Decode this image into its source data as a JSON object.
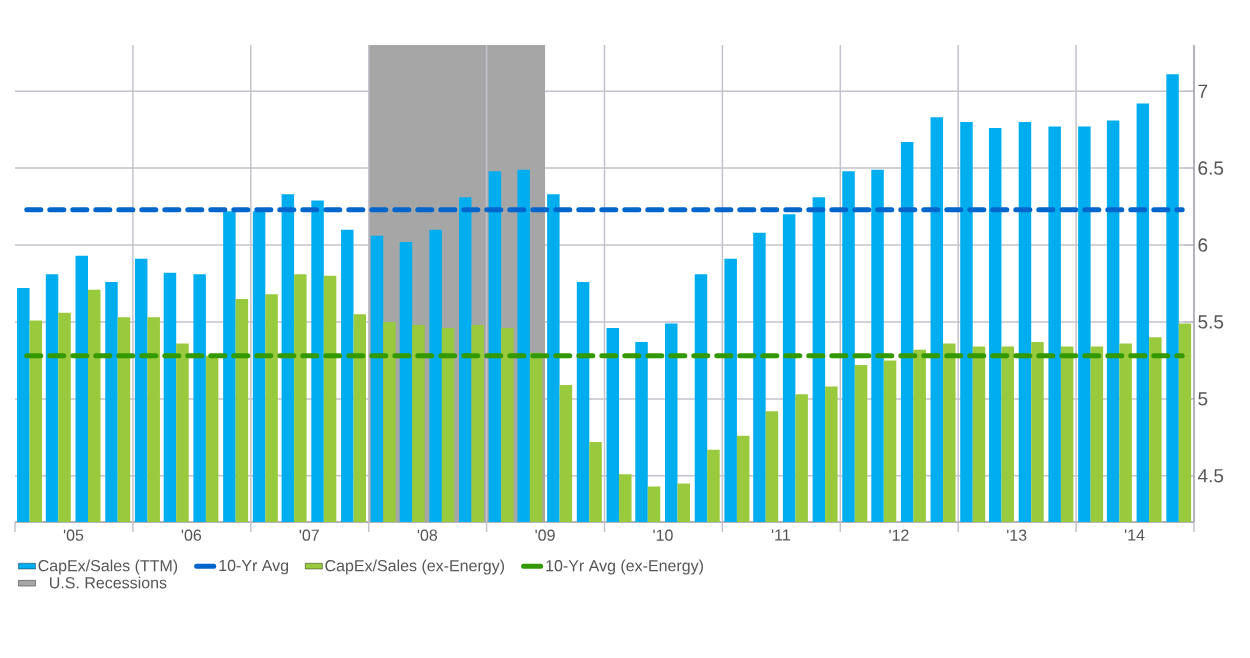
{
  "chart_data": {
    "type": "bar",
    "x": [
      "2005-02-15",
      "2005-05-15",
      "2005-08-15",
      "2005-11-15",
      "2006-02-15",
      "2006-05-15",
      "2006-08-15",
      "2006-11-15",
      "2007-02-15",
      "2007-05-15",
      "2007-08-15",
      "2007-11-15",
      "2008-02-15",
      "2008-05-15",
      "2008-08-15",
      "2008-11-15",
      "2009-02-15",
      "2009-05-15",
      "2009-08-15",
      "2009-11-15",
      "2010-02-15",
      "2010-05-15",
      "2010-08-15",
      "2010-11-15",
      "2011-02-15",
      "2011-05-15",
      "2011-08-15",
      "2011-11-15",
      "2012-02-15",
      "2012-05-15",
      "2012-08-15",
      "2012-11-15",
      "2013-02-15",
      "2013-05-15",
      "2013-08-15",
      "2013-11-15",
      "2014-02-15",
      "2014-05-15",
      "2014-08-15",
      "2014-11-15"
    ],
    "series": [
      {
        "name": "CapEx/Sales (TTM)",
        "color": "#00aeef",
        "values": [
          5.72,
          5.81,
          5.93,
          5.76,
          5.91,
          5.82,
          5.81,
          6.22,
          6.22,
          6.33,
          6.29,
          6.1,
          6.06,
          6.02,
          6.1,
          6.31,
          6.48,
          6.49,
          6.33,
          5.76,
          5.46,
          5.37,
          5.49,
          5.81,
          5.91,
          6.08,
          6.2,
          6.31,
          6.48,
          6.49,
          6.67,
          6.83,
          6.8,
          6.76,
          6.8,
          6.77,
          6.77,
          6.81,
          6.92,
          7.11
        ]
      },
      {
        "name": "CapEx/Sales (ex-Energy)",
        "color": "#99c93c",
        "values": [
          5.51,
          5.56,
          5.71,
          5.53,
          5.53,
          5.36,
          5.28,
          5.65,
          5.68,
          5.81,
          5.8,
          5.55,
          5.5,
          5.48,
          5.46,
          5.48,
          5.46,
          5.3,
          5.09,
          4.72,
          4.51,
          4.43,
          4.45,
          4.67,
          4.76,
          4.92,
          5.03,
          5.08,
          5.22,
          5.25,
          5.32,
          5.36,
          5.34,
          5.34,
          5.37,
          5.34,
          5.34,
          5.36,
          5.4,
          5.49
        ]
      }
    ],
    "ref_lines": [
      {
        "axis": "y",
        "value": 6.23,
        "label": "10-Yr Avg",
        "color": "#0066cc",
        "line_style": "dashed"
      },
      {
        "axis": "y",
        "value": 5.28,
        "label": "10-Yr Avg (ex-Energy)",
        "color": "#339900",
        "line_style": "dashed"
      }
    ],
    "bands": [
      {
        "axis": "x",
        "from": "2008",
        "to": "2009-07",
        "label": "U.S. Recessions",
        "color": "#a6a6a6"
      }
    ],
    "xlim": [
      "2005",
      "2015"
    ],
    "xticks": [
      {
        "value": "2006",
        "label": null
      },
      {
        "value": "2007",
        "label": null
      },
      {
        "value": "2008",
        "label": null
      },
      {
        "value": "2009",
        "label": null
      },
      {
        "value": "2010",
        "label": null
      },
      {
        "value": "2011",
        "label": null
      },
      {
        "value": "2012",
        "label": null
      },
      {
        "value": "2013",
        "label": null
      },
      {
        "value": "2014",
        "label": null
      },
      {
        "value": "2005-07",
        "label": "'05"
      },
      {
        "value": "2006-07",
        "label": "'06"
      },
      {
        "value": "2007-07",
        "label": "'07"
      },
      {
        "value": "2008-07",
        "label": "'08"
      },
      {
        "value": "2009-07",
        "label": "'09"
      },
      {
        "value": "2010-07",
        "label": "'10"
      },
      {
        "value": "2011-07",
        "label": "'11"
      },
      {
        "value": "2012-07",
        "label": "'12"
      },
      {
        "value": "2013-07",
        "label": "'13"
      },
      {
        "value": "2014-07",
        "label": "'14"
      }
    ],
    "ylim": [
      4.2,
      7.3
    ],
    "yticks": [
      4.5,
      5,
      5.5,
      6,
      6.5,
      7
    ],
    "grid": true,
    "legend": "bottom"
  }
}
